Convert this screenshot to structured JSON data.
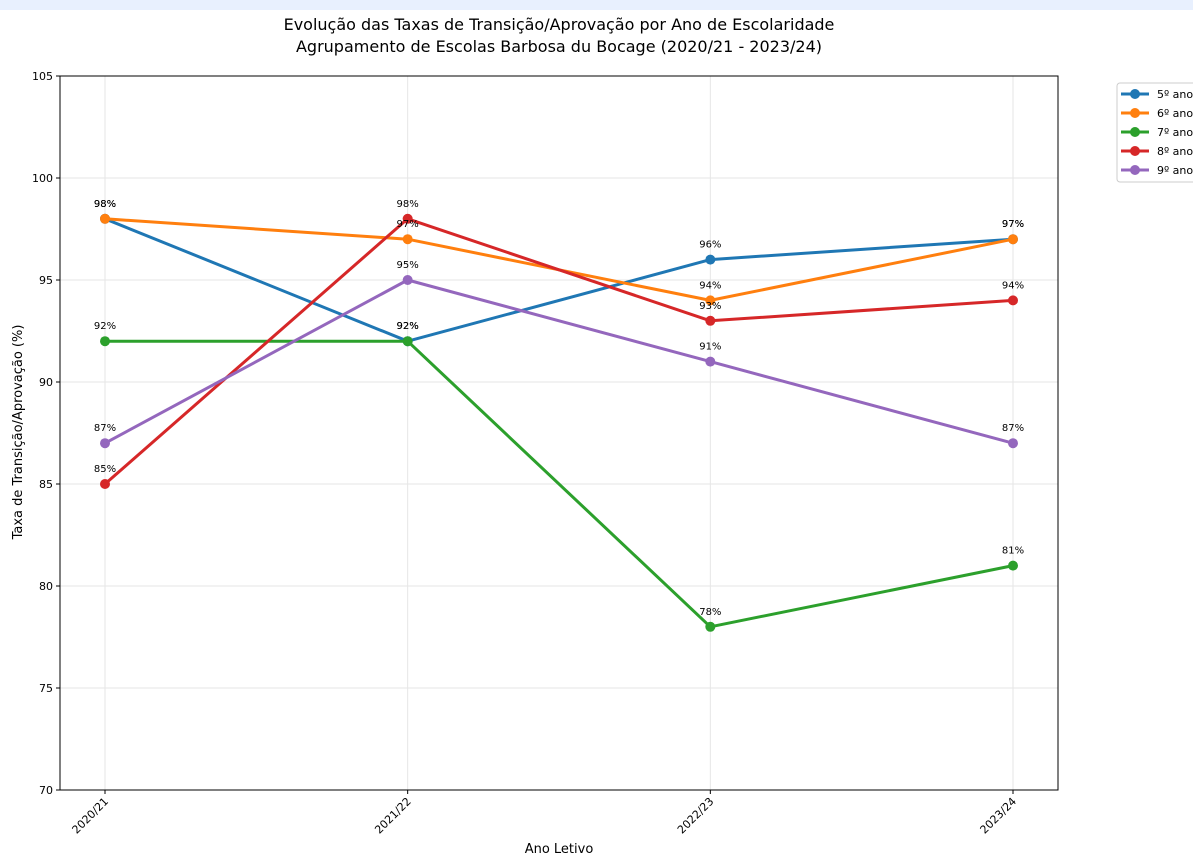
{
  "chart_data": {
    "type": "line",
    "title": "Evolução das Taxas de Transição/Aprovação por Ano de Escolaridade",
    "subtitle": "Agrupamento de Escolas Barbosa du Bocage (2020/21 - 2023/24)",
    "xlabel": "Ano Letivo",
    "ylabel": "Taxa de Transição/Aprovação (%)",
    "categories": [
      "2020/21",
      "2021/22",
      "2022/23",
      "2023/24"
    ],
    "ylim": [
      70,
      105
    ],
    "yticks": [
      70,
      75,
      80,
      85,
      90,
      95,
      100,
      105
    ],
    "grid": true,
    "legend_position": "top-right outside",
    "value_suffix": "%",
    "series": [
      {
        "name": "5º ano",
        "color": "#1f77b4",
        "values": [
          98,
          92,
          96,
          97
        ]
      },
      {
        "name": "6º ano",
        "color": "#ff7f0e",
        "values": [
          98,
          97,
          94,
          97
        ]
      },
      {
        "name": "7º ano",
        "color": "#2ca02c",
        "values": [
          92,
          92,
          78,
          81
        ]
      },
      {
        "name": "8º ano",
        "color": "#d62728",
        "values": [
          85,
          98,
          93,
          94
        ]
      },
      {
        "name": "9º ano",
        "color": "#9467bd",
        "values": [
          87,
          95,
          91,
          87
        ]
      }
    ]
  }
}
